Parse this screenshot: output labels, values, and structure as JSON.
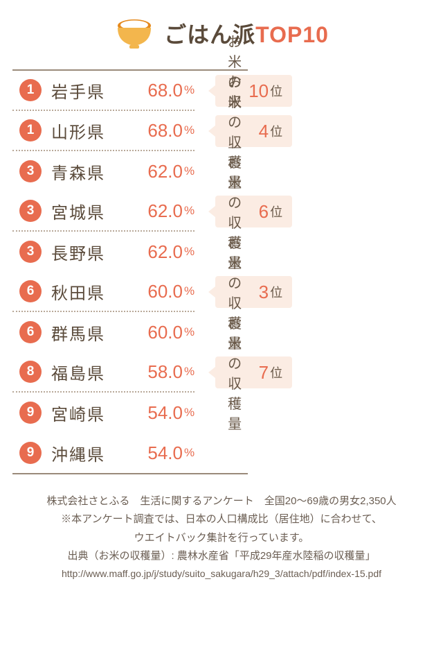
{
  "header": {
    "icon": "rice-bowl-icon",
    "title_prefix": "ごはん派",
    "title_top": "TOP10",
    "bowl_top_color": "#e58a1e",
    "bowl_rice_color": "#ffffff",
    "bowl_bottom_color": "#f3b64d"
  },
  "columns": {
    "harvest_label": "お米の収穫量",
    "harvest_suffix": "位",
    "percent_suffix": "%"
  },
  "rows": [
    {
      "rank": "1",
      "pref": "岩手県",
      "pct": "68.0",
      "harvest_rank": "10"
    },
    {
      "rank": "1",
      "pref": "山形県",
      "pct": "68.0",
      "harvest_rank": "4"
    },
    {
      "rank": "3",
      "pref": "青森県",
      "pct": "62.0",
      "harvest_rank": null
    },
    {
      "rank": "3",
      "pref": "宮城県",
      "pct": "62.0",
      "harvest_rank": "6"
    },
    {
      "rank": "3",
      "pref": "長野県",
      "pct": "62.0",
      "harvest_rank": null
    },
    {
      "rank": "6",
      "pref": "秋田県",
      "pct": "60.0",
      "harvest_rank": "3"
    },
    {
      "rank": "6",
      "pref": "群馬県",
      "pct": "60.0",
      "harvest_rank": null
    },
    {
      "rank": "8",
      "pref": "福島県",
      "pct": "58.0",
      "harvest_rank": "7"
    },
    {
      "rank": "9",
      "pref": "宮崎県",
      "pct": "54.0",
      "harvest_rank": null
    },
    {
      "rank": "9",
      "pref": "沖縄県",
      "pct": "54.0",
      "harvest_rank": null
    }
  ],
  "footer": {
    "line1": "株式会社さとふる　生活に関するアンケート　全国20～69歳の男女2,350人",
    "line2": "※本アンケート調査では、日本の人口構成比（居住地）に合わせて、",
    "line3": "ウエイトバック集計を行っています。",
    "line4": "出典（お米の収穫量）: 農林水産省「平成29年産水陸稲の収穫量」",
    "url": "http://www.maff.go.jp/j/study/suito_sakugara/h29_3/attach/pdf/index-15.pdf"
  },
  "colors": {
    "accent": "#e86c4f",
    "text": "#5a4a3a",
    "harvest_bg": "#fbece3",
    "border": "#9a8a7a"
  }
}
